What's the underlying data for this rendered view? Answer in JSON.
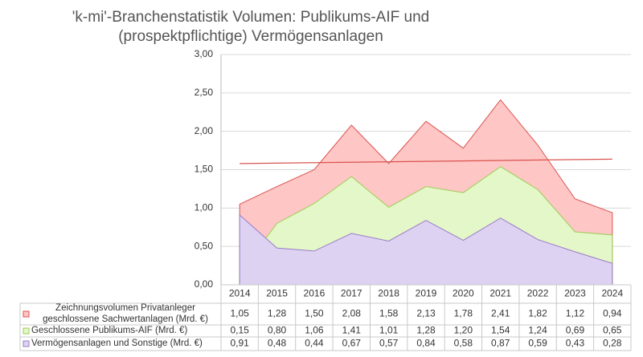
{
  "chart_data": {
    "type": "area",
    "title": [
      "'k-mi'-Branchenstatistik Volumen: Publikums-AIF und",
      "(prospektpflichtige) Vermögensanlagen"
    ],
    "categories": [
      "2014",
      "2015",
      "2016",
      "2017",
      "2018",
      "2019",
      "2020",
      "2021",
      "2022",
      "2023",
      "2024"
    ],
    "series": [
      {
        "name": "Zeichnungsvolumen Privatanleger geschlossene Sachwertanlagen (Mrd. €)",
        "color": "#d9534f",
        "fill": "#ffc6c6",
        "values": [
          1.05,
          1.28,
          1.5,
          2.08,
          1.58,
          2.13,
          1.78,
          2.41,
          1.82,
          1.12,
          0.94
        ],
        "value_labels": [
          "1,05",
          "1,28",
          "1,50",
          "2,08",
          "1,58",
          "2,13",
          "1,78",
          "2,41",
          "1,82",
          "1,12",
          "0,94"
        ],
        "trendline": true
      },
      {
        "name": "Geschlossene Publikums-AIF (Mrd. €)",
        "color": "#9ccc55",
        "fill": "#e4f7c8",
        "values": [
          0.15,
          0.8,
          1.06,
          1.41,
          1.01,
          1.28,
          1.2,
          1.54,
          1.24,
          0.69,
          0.65
        ],
        "value_labels": [
          "0,15",
          "0,80",
          "1,06",
          "1,41",
          "1,01",
          "1,28",
          "1,20",
          "1,54",
          "1,24",
          "0,69",
          "0,65"
        ]
      },
      {
        "name": "Vermögensanlagen und Sonstige (Mrd. €)",
        "color": "#9a7cc7",
        "fill": "#ddd2f1",
        "values": [
          0.91,
          0.48,
          0.44,
          0.67,
          0.57,
          0.84,
          0.58,
          0.87,
          0.59,
          0.43,
          0.28
        ],
        "value_labels": [
          "0,91",
          "0,48",
          "0,44",
          "0,67",
          "0,57",
          "0,84",
          "0,58",
          "0,87",
          "0,59",
          "0,43",
          "0,28"
        ]
      }
    ],
    "ylim": [
      0,
      3
    ],
    "yticks": [
      {
        "value": 0,
        "label": "0,00"
      },
      {
        "value": 0.5,
        "label": "0,50"
      },
      {
        "value": 1,
        "label": "1,00"
      },
      {
        "value": 1.5,
        "label": "1,50"
      },
      {
        "value": 2,
        "label": "2,00"
      },
      {
        "value": 2.5,
        "label": "2,50"
      },
      {
        "value": 3,
        "label": "3,00"
      }
    ],
    "grid": true
  }
}
